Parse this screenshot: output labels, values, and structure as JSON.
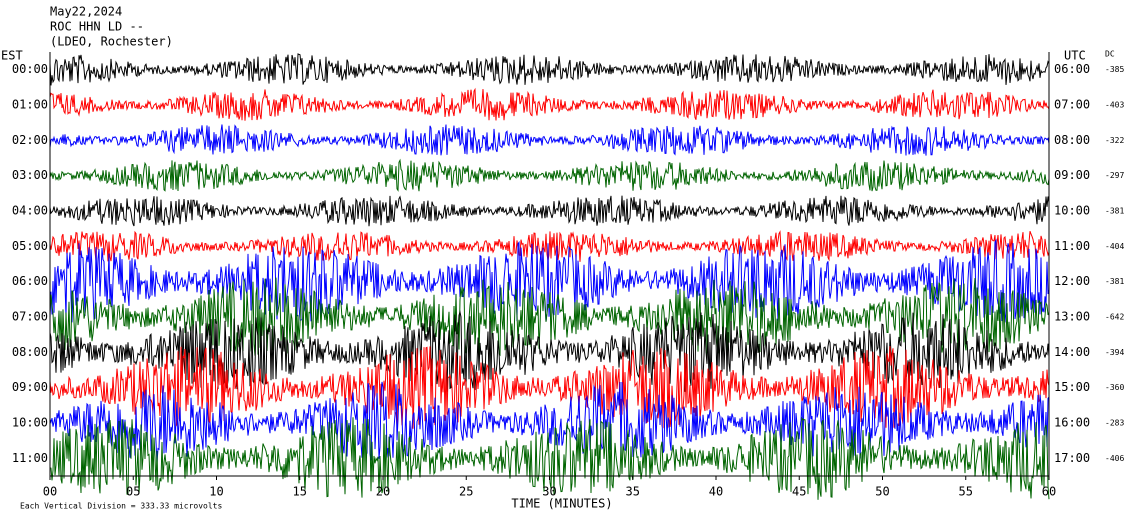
{
  "chart_data": {
    "type": "helicorder",
    "title_lines": [
      "May22,2024",
      "ROC HHN LD --",
      "(LDEO, Rochester)"
    ],
    "left_axis_label": "EST",
    "right_axis_label": "UTC",
    "offset_label": "DC",
    "rows": [
      {
        "est": "00:00",
        "utc": "06:00",
        "dc": -385,
        "color": "#000000"
      },
      {
        "est": "01:00",
        "utc": "07:00",
        "dc": -403,
        "color": "#ff0000"
      },
      {
        "est": "02:00",
        "utc": "08:00",
        "dc": -322,
        "color": "#0000ff"
      },
      {
        "est": "03:00",
        "utc": "09:00",
        "dc": -297,
        "color": "#006400"
      },
      {
        "est": "04:00",
        "utc": "10:00",
        "dc": -381,
        "color": "#000000"
      },
      {
        "est": "05:00",
        "utc": "11:00",
        "dc": -404,
        "color": "#ff0000"
      },
      {
        "est": "06:00",
        "utc": "12:00",
        "dc": -381,
        "color": "#0000ff"
      },
      {
        "est": "07:00",
        "utc": "13:00",
        "dc": -642,
        "color": "#006400"
      },
      {
        "est": "08:00",
        "utc": "14:00",
        "dc": -394,
        "color": "#000000"
      },
      {
        "est": "09:00",
        "utc": "15:00",
        "dc": -360,
        "color": "#ff0000"
      },
      {
        "est": "10:00",
        "utc": "16:00",
        "dc": -283,
        "color": "#0000ff"
      },
      {
        "est": "11:00",
        "utc": "17:00",
        "dc": -406,
        "color": "#006400"
      }
    ],
    "xlabel": "TIME (MINUTES)",
    "xlim": [
      0,
      60
    ],
    "xticks": [
      {
        "value": 0,
        "label": "00"
      },
      {
        "value": 5,
        "label": "05"
      },
      10,
      15,
      20,
      25,
      30,
      35,
      40,
      45,
      50,
      55,
      60
    ],
    "footer": "Each Vertical Division = 333.33 microvolts"
  }
}
